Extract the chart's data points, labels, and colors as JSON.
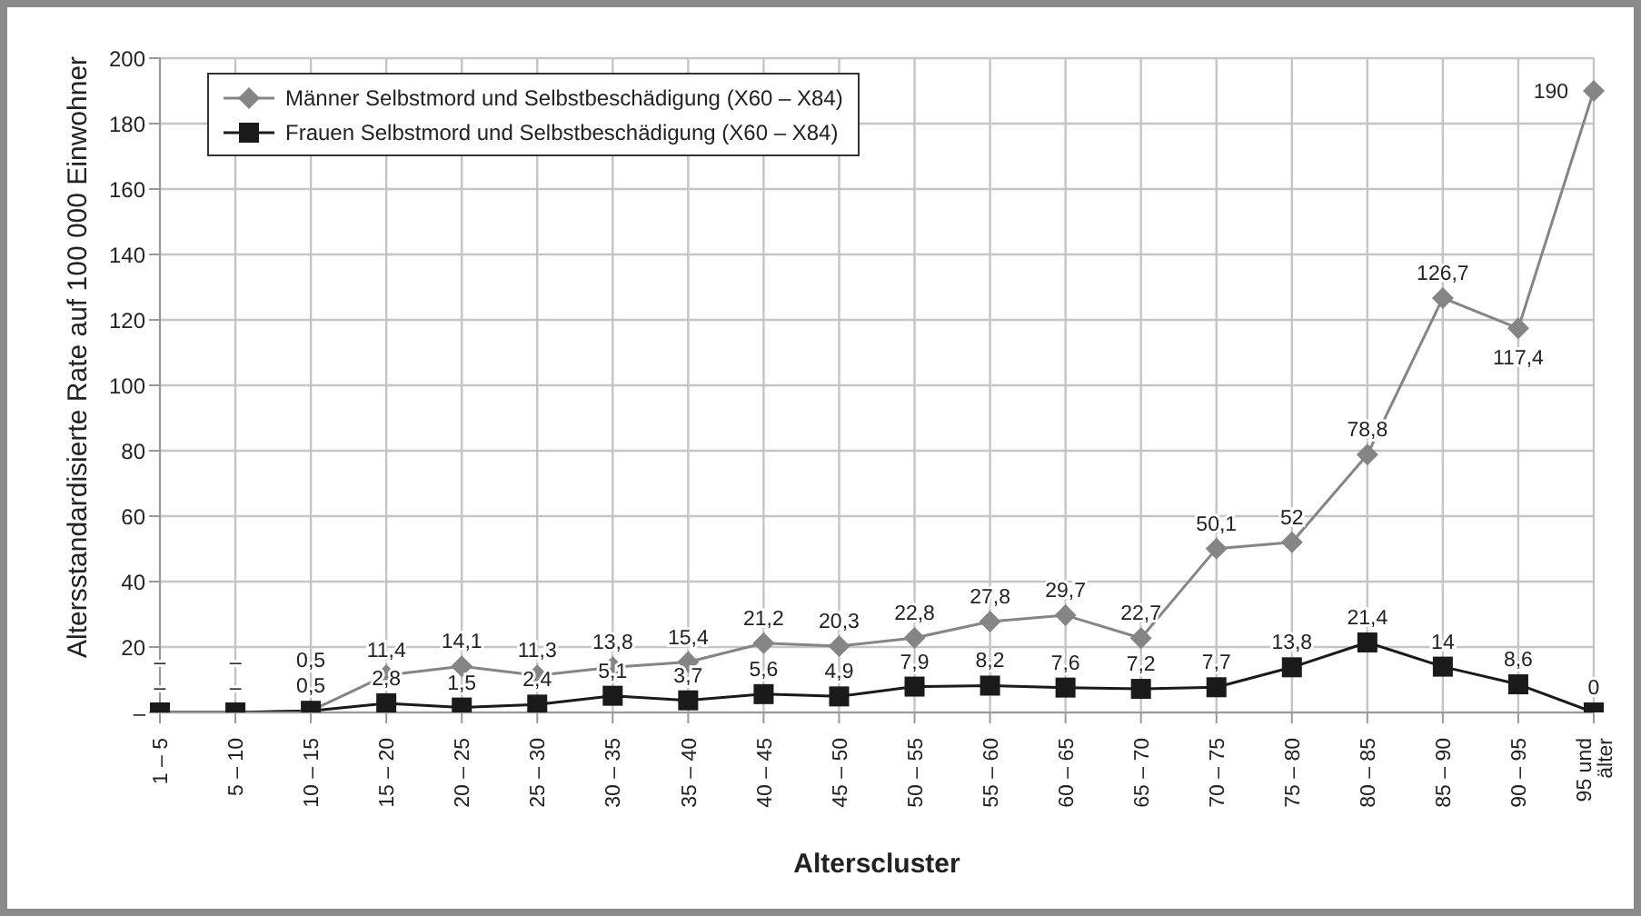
{
  "chart_data": {
    "type": "line",
    "xlabel": "Alterscluster",
    "ylabel": "Altersstandardisierte Rate auf 100 000 Einwohner",
    "categories": [
      "1 – 5",
      "5 – 10",
      "10 – 15",
      "15 – 20",
      "20 – 25",
      "25 – 30",
      "30 – 35",
      "35 – 40",
      "40 – 45",
      "45 – 50",
      "50 – 55",
      "55 – 60",
      "60 – 65",
      "65 – 70",
      "70 – 75",
      "75 – 80",
      "80 – 85",
      "85 – 90",
      "90 – 95",
      "95 und älter"
    ],
    "series": [
      {
        "name": "Männer Selbstmord und Selbstbeschädigung (X60 – X84)",
        "color": "#858585",
        "marker": "diamond",
        "values": [
          0,
          0,
          0.5,
          11.4,
          14.1,
          11.3,
          13.8,
          15.4,
          21.2,
          20.3,
          22.8,
          27.8,
          29.7,
          22.7,
          50.1,
          52,
          78.8,
          126.7,
          117.4,
          190
        ],
        "value_labels": [
          "–",
          "–",
          "0,5",
          "11,4",
          "14,1",
          "11,3",
          "13,8",
          "15,4",
          "21,2",
          "20,3",
          "22,8",
          "27,8",
          "29,7",
          "22,7",
          "50,1",
          "52",
          "78,8",
          "126,7",
          "117,4",
          "190"
        ]
      },
      {
        "name": "Frauen Selbstmord und Selbstbeschädigung (X60 – X84)",
        "color": "#1a1a1a",
        "marker": "square",
        "values": [
          0,
          0,
          0.5,
          2.8,
          1.5,
          2.4,
          5.1,
          3.7,
          5.6,
          4.9,
          7.9,
          8.2,
          7.6,
          7.2,
          7.7,
          13.8,
          21.4,
          14,
          8.6,
          0
        ],
        "value_labels": [
          "–",
          "–",
          "0,5",
          "2,8",
          "1,5",
          "2,4",
          "5,1",
          "3,7",
          "5,6",
          "4,9",
          "7,9",
          "8,2",
          "7,6",
          "7,2",
          "7,7",
          "13,8",
          "21,4",
          "14",
          "8,6",
          "0"
        ]
      }
    ],
    "ylim": [
      0,
      200
    ],
    "yticks": [
      {
        "value": 0,
        "label": "–"
      },
      20,
      40,
      60,
      80,
      100,
      120,
      140,
      160,
      180,
      200
    ],
    "grid": true,
    "legend": "top left",
    "line_style": "solid"
  }
}
